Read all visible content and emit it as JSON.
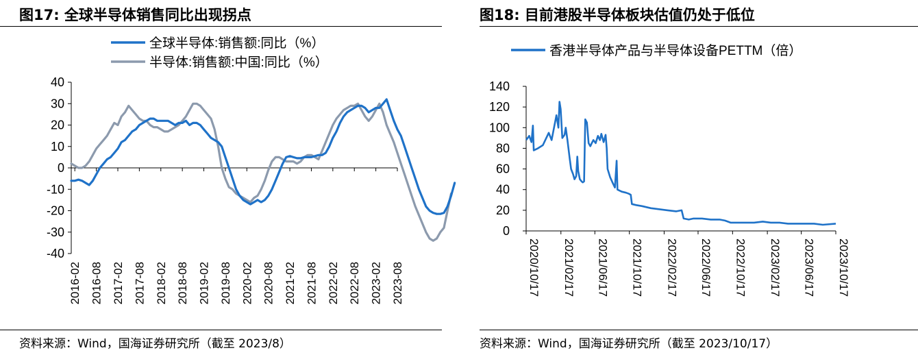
{
  "left": {
    "figure_title": "图17:   全球半导体销售同比出现拐点",
    "source": "资料来源：Wind，国海证券研究所（截至 2023/8）"
  },
  "right": {
    "figure_title": "图18:   目前港股半导体板块估值仍处于低位",
    "source": "资料来源：Wind，国海证券研究所（截至 2023/10/17）"
  },
  "chart_data": [
    {
      "type": "line",
      "title": "全球半导体销售同比出现拐点",
      "xlabel": "",
      "ylabel": "",
      "ylim": [
        -40,
        40
      ],
      "yticks": [
        40,
        30,
        20,
        10,
        0,
        -10,
        -20,
        -30,
        -40
      ],
      "xticks": [
        "2016-02",
        "2016-08",
        "2017-02",
        "2017-08",
        "2018-02",
        "2018-08",
        "2019-02",
        "2019-08",
        "2020-02",
        "2020-08",
        "2021-02",
        "2021-08",
        "2022-02",
        "2022-08",
        "2023-02",
        "2023-08"
      ],
      "x_start": "2016-01",
      "x_end": "2023-08",
      "legend_position": "top",
      "grid": false,
      "series": [
        {
          "name": "全球半导体:销售额:同比（%）",
          "color": "#1f72c8",
          "values": [
            -6,
            -6,
            -5.5,
            -6,
            -7,
            -8,
            -6,
            -3,
            0,
            2,
            4,
            5,
            7,
            9,
            12,
            13,
            15,
            17,
            18,
            20,
            21,
            22,
            23,
            23,
            22,
            22,
            22,
            22,
            21,
            20,
            21,
            21,
            22,
            20,
            21,
            21,
            20,
            18,
            16,
            14,
            13,
            12,
            10,
            5,
            0,
            -5,
            -10,
            -13,
            -15,
            -16,
            -17,
            -16,
            -15,
            -16,
            -15,
            -13,
            -10,
            -6,
            -2,
            2,
            5,
            5.5,
            5,
            4.5,
            4.5,
            5,
            5,
            5,
            5.5,
            6,
            6,
            7,
            10,
            14,
            17,
            21,
            24,
            26,
            27,
            28,
            29,
            29,
            28,
            26,
            27,
            28,
            28,
            30,
            32,
            27,
            22,
            18,
            15,
            10,
            5,
            0,
            -5,
            -10,
            -14,
            -18,
            -20,
            -21,
            -21.5,
            -21.5,
            -21,
            -18,
            -13,
            -7
          ]
        },
        {
          "name": "半导体:销售额:中国:同比（%）",
          "color": "#8c9aad",
          "values": [
            2,
            1,
            0,
            0,
            1,
            3,
            6,
            9,
            11,
            13,
            15,
            18,
            21,
            20,
            24,
            26,
            29,
            27,
            25,
            23,
            22,
            22,
            20,
            19,
            19,
            18,
            17,
            17,
            18,
            19,
            20,
            22,
            24,
            27,
            30,
            30,
            29,
            27,
            25,
            23,
            18,
            10,
            0,
            -5,
            -9,
            -10,
            -12,
            -13,
            -14,
            -15,
            -16,
            -14,
            -13,
            -10,
            -6,
            -1,
            3,
            5,
            5,
            4,
            3,
            3,
            3,
            2,
            3,
            5,
            6,
            6,
            5,
            4,
            8,
            12,
            16,
            20,
            23,
            25,
            27,
            28,
            29,
            29,
            30,
            27,
            24,
            22,
            24,
            27,
            30,
            26,
            20,
            16,
            12,
            7,
            2,
            -3,
            -8,
            -13,
            -18,
            -22,
            -26,
            -30,
            -33,
            -34,
            -33,
            -30,
            -28,
            -20,
            -12
          ]
        }
      ]
    },
    {
      "type": "line",
      "title": "目前港股半导体板块估值仍处于低位",
      "xlabel": "",
      "ylabel": "",
      "ylim": [
        0,
        140
      ],
      "yticks": [
        140,
        120,
        100,
        80,
        60,
        40,
        20,
        0
      ],
      "xticks": [
        "2020/10/17",
        "2021/02/17",
        "2021/06/17",
        "2021/10/17",
        "2022/02/17",
        "2022/06/17",
        "2022/10/17",
        "2023/02/17",
        "2023/06/17",
        "2023/10/17"
      ],
      "x_start": "2020/10/17",
      "x_end": "2023/10/17",
      "legend_position": "top",
      "grid": false,
      "series": [
        {
          "name": "香港半导体产品与半导体设备PETTM（倍）",
          "color": "#1f72c8",
          "points": [
            [
              "2020-10-17",
              88
            ],
            [
              "2020-10-28",
              92
            ],
            [
              "2020-11-05",
              86
            ],
            [
              "2020-11-10",
              102
            ],
            [
              "2020-11-13",
              78
            ],
            [
              "2020-11-28",
              80
            ],
            [
              "2020-12-15",
              83
            ],
            [
              "2021-01-05",
              95
            ],
            [
              "2021-01-15",
              88
            ],
            [
              "2021-02-01",
              112
            ],
            [
              "2021-02-08",
              100
            ],
            [
              "2021-02-12",
              125
            ],
            [
              "2021-02-16",
              118
            ],
            [
              "2021-02-22",
              90
            ],
            [
              "2021-03-02",
              93
            ],
            [
              "2021-03-06",
              100
            ],
            [
              "2021-03-12",
              88
            ],
            [
              "2021-03-20",
              70
            ],
            [
              "2021-03-25",
              60
            ],
            [
              "2021-04-01",
              55
            ],
            [
              "2021-04-06",
              50
            ],
            [
              "2021-04-12",
              53
            ],
            [
              "2021-04-16",
              72
            ],
            [
              "2021-04-19",
              58
            ],
            [
              "2021-04-25",
              50
            ],
            [
              "2021-05-01",
              48
            ],
            [
              "2021-05-05",
              47
            ],
            [
              "2021-05-10",
              48
            ],
            [
              "2021-05-14",
              108
            ],
            [
              "2021-05-20",
              105
            ],
            [
              "2021-05-26",
              85
            ],
            [
              "2021-06-01",
              82
            ],
            [
              "2021-06-06",
              85
            ],
            [
              "2021-06-12",
              88
            ],
            [
              "2021-06-20",
              85
            ],
            [
              "2021-06-28",
              92
            ],
            [
              "2021-07-05",
              88
            ],
            [
              "2021-07-10",
              94
            ],
            [
              "2021-07-18",
              86
            ],
            [
              "2021-07-25",
              93
            ],
            [
              "2021-07-29",
              80
            ],
            [
              "2021-08-01",
              60
            ],
            [
              "2021-08-10",
              52
            ],
            [
              "2021-08-20",
              46
            ],
            [
              "2021-08-27",
              42
            ],
            [
              "2021-09-02",
              68
            ],
            [
              "2021-09-05",
              40
            ],
            [
              "2021-09-20",
              38
            ],
            [
              "2021-10-05",
              37
            ],
            [
              "2021-10-15",
              36
            ],
            [
              "2021-10-22",
              35
            ],
            [
              "2021-10-26",
              26
            ],
            [
              "2021-11-10",
              25
            ],
            [
              "2021-12-01",
              24
            ],
            [
              "2022-01-01",
              22
            ],
            [
              "2022-02-01",
              21
            ],
            [
              "2022-03-01",
              20
            ],
            [
              "2022-04-01",
              19
            ],
            [
              "2022-04-20",
              20
            ],
            [
              "2022-04-27",
              12
            ],
            [
              "2022-05-15",
              11
            ],
            [
              "2022-06-01",
              12
            ],
            [
              "2022-07-01",
              12
            ],
            [
              "2022-08-01",
              11
            ],
            [
              "2022-09-01",
              11
            ],
            [
              "2022-09-20",
              10
            ],
            [
              "2022-10-10",
              8
            ],
            [
              "2022-11-01",
              8
            ],
            [
              "2022-12-01",
              8
            ],
            [
              "2023-01-01",
              8
            ],
            [
              "2023-02-01",
              9
            ],
            [
              "2023-03-01",
              8
            ],
            [
              "2023-04-01",
              8
            ],
            [
              "2023-05-01",
              7
            ],
            [
              "2023-06-01",
              7
            ],
            [
              "2023-07-01",
              7
            ],
            [
              "2023-08-01",
              7
            ],
            [
              "2023-09-01",
              6
            ],
            [
              "2023-10-17",
              7
            ]
          ]
        }
      ]
    }
  ]
}
